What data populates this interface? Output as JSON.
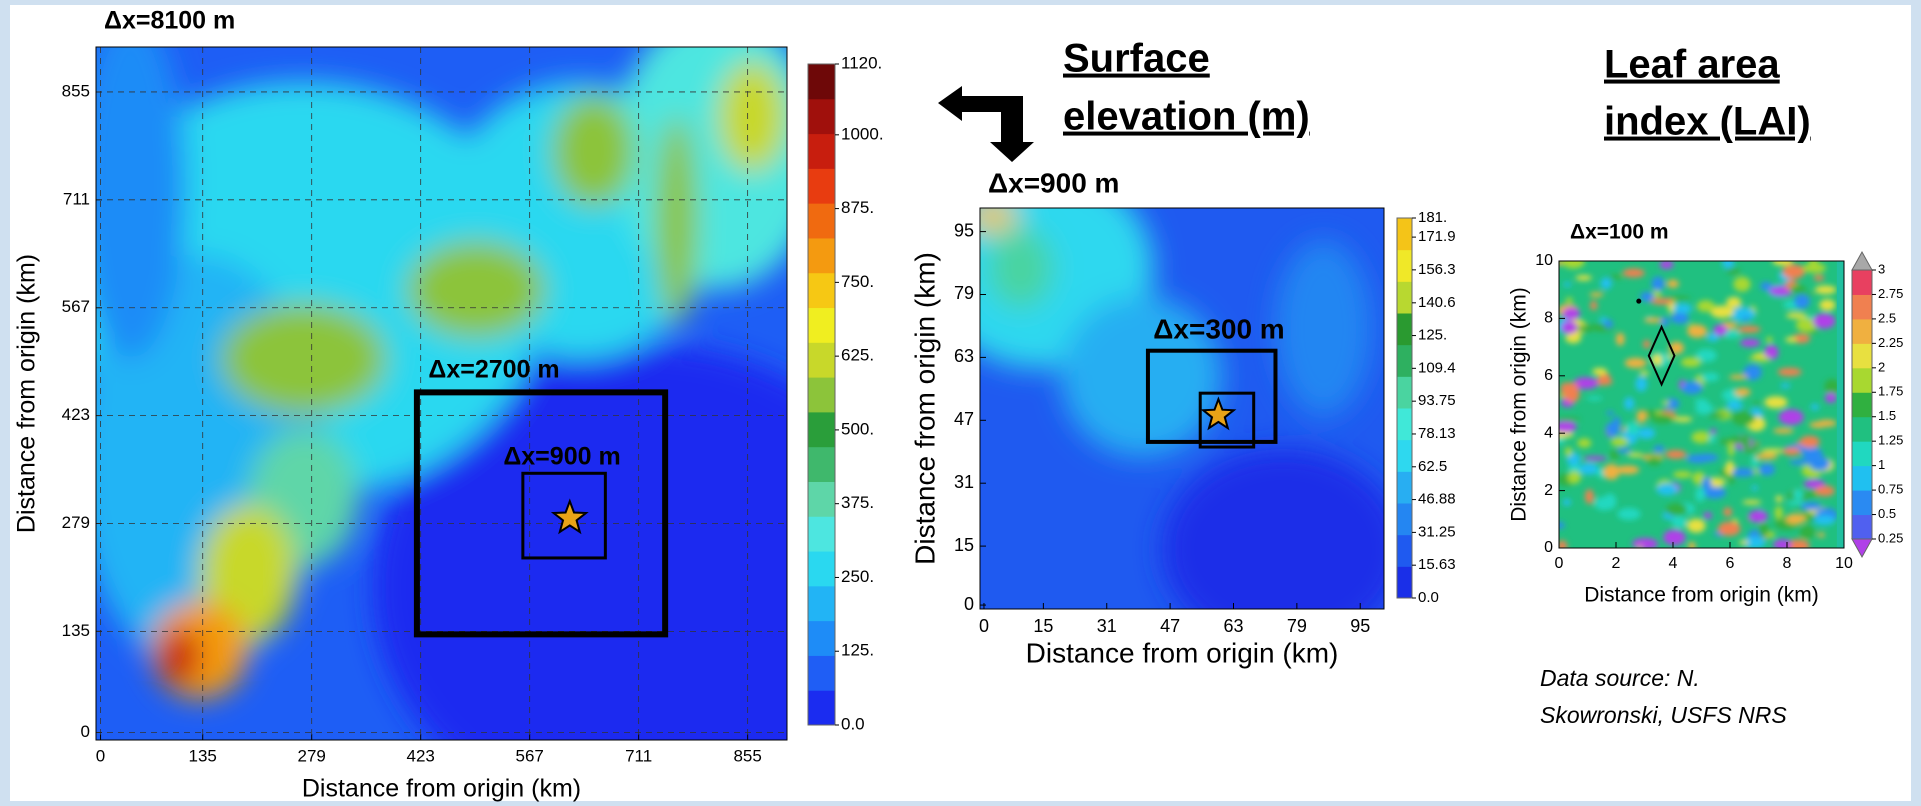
{
  "headings": {
    "elevation": [
      "Surface",
      "elevation (m)"
    ],
    "lai": [
      "Leaf area",
      "index (LAI)"
    ]
  },
  "source": [
    "Data source: N.",
    "Skowronski, USFS NRS"
  ],
  "chart_data": [
    {
      "type": "map",
      "title": "Δx=8100 m",
      "x_label": "Distance from origin (km)",
      "y_label": "Distance from origin (km)",
      "xlim": [
        -6,
        907
      ],
      "ylim": [
        -10,
        915
      ],
      "xticks": [
        0,
        135,
        279,
        423,
        567,
        711,
        855
      ],
      "yticks": [
        0,
        135,
        279,
        423,
        567,
        711,
        855
      ],
      "grid": true,
      "annotations": [
        "Δx=2700 m",
        "Δx=900 m"
      ],
      "colorbar": {
        "ticks": [
          {
            "value": 0,
            "label": "0.0"
          },
          {
            "value": 125,
            "label": "125."
          },
          {
            "value": 250,
            "label": "250."
          },
          {
            "value": 375,
            "label": "375."
          },
          {
            "value": 500,
            "label": "500."
          },
          {
            "value": 625,
            "label": "625."
          },
          {
            "value": 750,
            "label": "750."
          },
          {
            "value": 875,
            "label": "875."
          },
          {
            "value": 1000,
            "label": "1000."
          },
          {
            "value": 1120,
            "label": "1120."
          }
        ],
        "colors": [
          "#1b2cf0",
          "#1f5ef5",
          "#1e8cf7",
          "#22b4f5",
          "#2ad8f0",
          "#4de6e0",
          "#5ed6a8",
          "#3fb86c",
          "#2a9e3a",
          "#8cc43a",
          "#c8d82a",
          "#f0ee20",
          "#f6c814",
          "#f49a10",
          "#f06a10",
          "#e83c10",
          "#c81e0e",
          "#a0100c",
          "#6e0808"
        ]
      }
    },
    {
      "type": "map",
      "title": "Δx=900 m",
      "x_label": "Distance from origin (km)",
      "y_label": "Distance from origin (km)",
      "xlim": [
        -1,
        101
      ],
      "ylim": [
        -1,
        101
      ],
      "xticks": [
        0,
        15,
        31,
        47,
        63,
        79,
        95
      ],
      "yticks": [
        0,
        15,
        31,
        47,
        63,
        79,
        95
      ],
      "grid": false,
      "annotations": [
        "Δx=300 m"
      ],
      "colorbar": {
        "ticks": [
          {
            "value": 0,
            "label": "0.0"
          },
          15.63,
          31.25,
          46.88,
          62.5,
          78.13,
          93.75,
          109.4,
          {
            "value": 125,
            "label": "125."
          },
          140.6,
          156.3,
          171.9,
          {
            "value": 181,
            "label": "181."
          }
        ],
        "colors": [
          "#1a2fe8",
          "#1f5af0",
          "#2486f2",
          "#28aef2",
          "#2ed8ef",
          "#40e8d8",
          "#4ad4a0",
          "#2eb060",
          "#2a9a30",
          "#b8d830",
          "#f0e828",
          "#f4c418"
        ]
      }
    },
    {
      "type": "map",
      "title": "Δx=100 m",
      "x_label": "Distance from origin (km)",
      "y_label": "Distance from origin (km)",
      "xlim": [
        0,
        10
      ],
      "ylim": [
        0,
        10
      ],
      "xticks": [
        0,
        2,
        4,
        6,
        8,
        10
      ],
      "yticks": [
        0,
        2,
        4,
        6,
        8,
        10
      ],
      "grid": false,
      "annotations": [],
      "colorbar": {
        "ticks": [
          0.25,
          0.5,
          0.75,
          1,
          1.25,
          1.5,
          1.75,
          2,
          2.25,
          2.5,
          2.75,
          3
        ],
        "colors": [
          "#5060f0",
          "#2a8af2",
          "#20c0f0",
          "#20d8c0",
          "#20c080",
          "#30b040",
          "#a8d830",
          "#e8e040",
          "#f0b040",
          "#f08050",
          "#e84060"
        ],
        "extend_colors": [
          "#b040e8",
          "#a8a8a8"
        ]
      }
    }
  ]
}
